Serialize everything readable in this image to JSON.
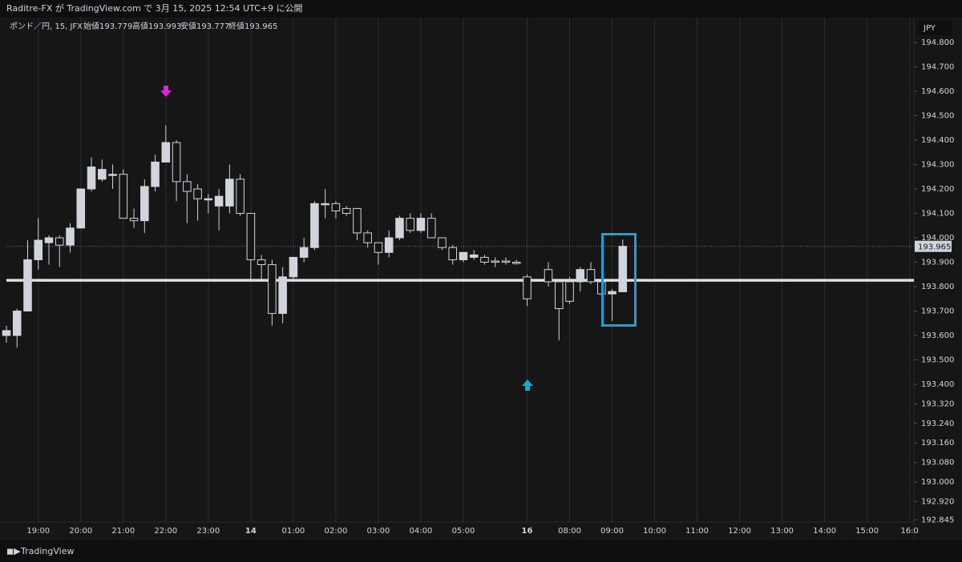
{
  "header": {
    "publish_line": "Raditre-FX が TradingView.com で 3月 15, 2025 12:54 UTC+9 に公開",
    "symbol": "ポンド／円, 15, JFX",
    "open": "始値193.779",
    "high": "高値193.993",
    "low": "安値193.777",
    "close": "終値193.965"
  },
  "currency": "JPY",
  "footer": "TradingView",
  "chart_data": {
    "type": "candlestick",
    "x": [
      -3,
      -2,
      -1,
      0,
      1,
      2,
      3,
      4,
      5,
      6,
      7,
      8,
      9,
      10,
      11,
      12,
      13,
      14,
      15,
      16,
      17,
      18,
      19,
      20,
      21,
      22,
      23,
      24,
      25,
      26,
      27,
      28,
      29,
      30,
      31,
      32,
      33,
      34,
      35,
      36,
      37,
      38,
      39,
      40,
      41,
      42,
      43,
      44,
      45,
      46,
      48,
      49,
      50,
      51,
      52,
      53,
      54,
      55
    ],
    "open": [
      193.6,
      193.6,
      193.7,
      193.91,
      193.98,
      194.0,
      193.97,
      194.04,
      194.2,
      194.24,
      194.26,
      194.26,
      194.08,
      194.07,
      194.21,
      194.31,
      194.39,
      194.23,
      194.2,
      194.16,
      194.13,
      194.13,
      194.24,
      194.1,
      193.91,
      193.89,
      193.69,
      193.84,
      193.92,
      193.96,
      194.14,
      194.14,
      194.12,
      194.12,
      194.02,
      193.98,
      193.94,
      194.0,
      194.08,
      194.03,
      194.08,
      194.0,
      193.96,
      193.91,
      193.92,
      193.92,
      193.905,
      193.905,
      193.9,
      193.84,
      193.87,
      193.82,
      193.82,
      193.82,
      193.87,
      193.82,
      193.77,
      193.779
    ],
    "high": [
      193.64,
      193.71,
      193.99,
      194.08,
      194.01,
      194.01,
      194.06,
      194.2,
      194.33,
      194.32,
      194.3,
      194.28,
      194.12,
      194.24,
      194.34,
      194.46,
      194.4,
      194.26,
      194.22,
      194.18,
      194.2,
      194.3,
      194.26,
      194.1,
      193.93,
      193.91,
      193.88,
      193.92,
      194.0,
      194.15,
      194.2,
      194.15,
      194.13,
      194.12,
      194.03,
      193.98,
      194.03,
      194.09,
      194.1,
      194.1,
      194.1,
      194.0,
      193.97,
      193.94,
      193.95,
      193.93,
      193.92,
      193.92,
      193.91,
      193.85,
      193.9,
      193.83,
      193.84,
      193.88,
      193.9,
      193.82,
      193.79,
      193.993
    ],
    "low": [
      193.57,
      193.55,
      193.7,
      193.87,
      193.89,
      193.88,
      193.94,
      194.04,
      194.19,
      194.23,
      194.2,
      194.08,
      194.04,
      194.02,
      194.19,
      194.31,
      194.15,
      194.06,
      194.07,
      194.1,
      194.03,
      194.1,
      194.09,
      193.82,
      193.82,
      193.64,
      193.65,
      193.83,
      193.9,
      193.95,
      194.08,
      194.08,
      194.09,
      193.99,
      193.96,
      193.89,
      193.92,
      193.99,
      194.02,
      194.02,
      194.0,
      193.95,
      193.89,
      193.9,
      193.91,
      193.89,
      193.88,
      193.89,
      193.89,
      193.72,
      193.8,
      193.58,
      193.73,
      193.78,
      193.81,
      193.76,
      193.66,
      193.777
    ],
    "close": [
      193.62,
      193.7,
      193.91,
      193.99,
      194.0,
      193.97,
      194.04,
      194.2,
      194.29,
      194.28,
      194.26,
      194.08,
      194.07,
      194.21,
      194.31,
      194.39,
      194.23,
      194.19,
      194.16,
      194.16,
      194.17,
      194.24,
      194.1,
      193.91,
      193.89,
      193.69,
      193.84,
      193.92,
      193.96,
      194.14,
      194.14,
      194.11,
      194.1,
      194.02,
      193.98,
      193.94,
      194.0,
      194.08,
      194.03,
      194.08,
      194.0,
      193.96,
      193.91,
      193.94,
      193.93,
      193.9,
      193.9,
      193.9,
      193.895,
      193.75,
      193.82,
      193.71,
      193.74,
      193.87,
      193.82,
      193.77,
      193.78,
      193.965
    ],
    "xlim": [
      -3,
      82.4
    ],
    "xticks": [
      {
        "value": 0,
        "label": "19:00"
      },
      {
        "value": 4,
        "label": "20:00"
      },
      {
        "value": 8,
        "label": "21:00"
      },
      {
        "value": 12,
        "label": "22:00"
      },
      {
        "value": 16,
        "label": "23:00"
      },
      {
        "value": 20,
        "label": "14"
      },
      {
        "value": 24,
        "label": "01:00"
      },
      {
        "value": 28,
        "label": "02:00"
      },
      {
        "value": 32,
        "label": "03:00"
      },
      {
        "value": 36,
        "label": "04:00"
      },
      {
        "value": 40,
        "label": "05:00"
      },
      {
        "value": 46,
        "label": "16"
      },
      {
        "value": 50,
        "label": "08:00"
      },
      {
        "value": 54,
        "label": "09:00"
      },
      {
        "value": 58,
        "label": "10:00"
      },
      {
        "value": 62,
        "label": "11:00"
      },
      {
        "value": 66,
        "label": "12:00"
      },
      {
        "value": 70,
        "label": "13:00"
      },
      {
        "value": 74,
        "label": "14:00"
      },
      {
        "value": 78,
        "label": "15:00"
      },
      {
        "value": 82,
        "label": "16:0"
      }
    ],
    "ylim": [
      192.83,
      194.9
    ],
    "yticks": [
      {
        "value": 194.8,
        "label": "194.800"
      },
      {
        "value": 194.7,
        "label": "194.700"
      },
      {
        "value": 194.6,
        "label": "194.600"
      },
      {
        "value": 194.5,
        "label": "194.500"
      },
      {
        "value": 194.4,
        "label": "194.400"
      },
      {
        "value": 194.3,
        "label": "194.300"
      },
      {
        "value": 194.2,
        "label": "194.200"
      },
      {
        "value": 194.1,
        "label": "194.100"
      },
      {
        "value": 194.0,
        "label": "194.000"
      },
      {
        "value": 193.9,
        "label": "193.900"
      },
      {
        "value": 193.8,
        "label": "193.800"
      },
      {
        "value": 193.7,
        "label": "193.700"
      },
      {
        "value": 193.6,
        "label": "193.600"
      },
      {
        "value": 193.5,
        "label": "193.500"
      },
      {
        "value": 193.4,
        "label": "193.400"
      },
      {
        "value": 193.32,
        "label": "193.320"
      },
      {
        "value": 193.24,
        "label": "193.240"
      },
      {
        "value": 193.16,
        "label": "193.160"
      },
      {
        "value": 193.08,
        "label": "193.080"
      },
      {
        "value": 193.0,
        "label": "193.000"
      },
      {
        "value": 192.92,
        "label": "192.920"
      },
      {
        "value": 192.845,
        "label": "192.845"
      }
    ],
    "last_price": {
      "value": 193.965,
      "label": "193.965"
    },
    "horizontal_line": 193.826,
    "up_color": "#d1d4dc",
    "down_color": "#161616",
    "grid": true
  }
}
